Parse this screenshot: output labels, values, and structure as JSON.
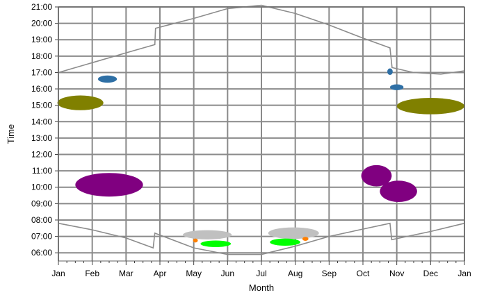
{
  "chart_data": {
    "type": "scatter",
    "title": "",
    "xlabel": "Month",
    "ylabel": "Time",
    "x_ticks": [
      "Jan",
      "Feb",
      "Mar",
      "Apr",
      "May",
      "Jun",
      "Jul",
      "Aug",
      "Sep",
      "Oct",
      "Nov",
      "Dec",
      "Jan"
    ],
    "y_ticks": [
      "06:00",
      "07:00",
      "08:00",
      "09:00",
      "10:00",
      "11:00",
      "12:00",
      "13:00",
      "14:00",
      "15:00",
      "16:00",
      "17:00",
      "18:00",
      "19:00",
      "20:00",
      "21:00"
    ],
    "x_range_months": [
      0,
      12
    ],
    "y_range_hours": [
      5.5,
      21.0
    ],
    "grid": true,
    "curves": [
      {
        "points": [
          [
            0,
            17.0
          ],
          [
            1,
            17.6
          ],
          [
            2,
            18.2
          ],
          [
            2.85,
            18.7
          ],
          [
            2.87,
            19.7
          ],
          [
            4,
            20.3
          ],
          [
            5,
            20.9
          ],
          [
            6,
            21.1
          ],
          [
            7,
            20.6
          ],
          [
            8,
            19.9
          ],
          [
            9,
            19.1
          ],
          [
            9.8,
            18.5
          ],
          [
            9.86,
            17.3
          ],
          [
            10.5,
            17.0
          ],
          [
            11.3,
            16.9
          ],
          [
            12,
            17.1
          ]
        ],
        "color": "#8c8c8c"
      },
      {
        "points": [
          [
            0,
            7.8
          ],
          [
            1,
            7.4
          ],
          [
            2,
            6.9
          ],
          [
            2.8,
            6.3
          ],
          [
            2.85,
            7.2
          ],
          [
            4,
            6.3
          ],
          [
            5,
            5.9
          ],
          [
            6,
            5.9
          ],
          [
            7,
            6.4
          ],
          [
            8,
            7.0
          ],
          [
            9.8,
            7.8
          ],
          [
            9.85,
            6.8
          ],
          [
            11,
            7.3
          ],
          [
            12,
            7.8
          ]
        ],
        "color": "#8c8c8c"
      }
    ],
    "blobs": [
      {
        "cx": 0.65,
        "cy": 15.15,
        "rx": 0.68,
        "ry": 0.45,
        "color": "#808000"
      },
      {
        "cx": 11.0,
        "cy": 14.95,
        "rx": 1.0,
        "ry": 0.5,
        "color": "#808000"
      },
      {
        "cx": 1.45,
        "cy": 16.6,
        "rx": 0.28,
        "ry": 0.22,
        "color": "#2e6fa5"
      },
      {
        "cx": 9.8,
        "cy": 17.05,
        "rx": 0.08,
        "ry": 0.2,
        "color": "#2e6fa5"
      },
      {
        "cx": 10.0,
        "cy": 16.1,
        "rx": 0.2,
        "ry": 0.18,
        "color": "#2e6fa5"
      },
      {
        "cx": 1.5,
        "cy": 10.15,
        "rx": 1.0,
        "ry": 0.72,
        "color": "#800080"
      },
      {
        "cx": 9.4,
        "cy": 10.7,
        "rx": 0.45,
        "ry": 0.65,
        "color": "#800080"
      },
      {
        "cx": 10.05,
        "cy": 9.75,
        "rx": 0.55,
        "ry": 0.65,
        "color": "#800080"
      },
      {
        "cx": 4.4,
        "cy": 7.1,
        "rx": 0.72,
        "ry": 0.28,
        "color": "#c0c0c0"
      },
      {
        "cx": 6.95,
        "cy": 7.2,
        "rx": 0.75,
        "ry": 0.35,
        "color": "#c0c0c0"
      },
      {
        "cx": 4.65,
        "cy": 6.55,
        "rx": 0.45,
        "ry": 0.2,
        "color": "#00ff00"
      },
      {
        "cx": 6.7,
        "cy": 6.65,
        "rx": 0.45,
        "ry": 0.22,
        "color": "#00ff00"
      },
      {
        "cx": 4.05,
        "cy": 6.75,
        "rx": 0.07,
        "ry": 0.12,
        "color": "#ff8000"
      },
      {
        "cx": 7.3,
        "cy": 6.85,
        "rx": 0.09,
        "ry": 0.12,
        "color": "#ff8000"
      }
    ]
  }
}
